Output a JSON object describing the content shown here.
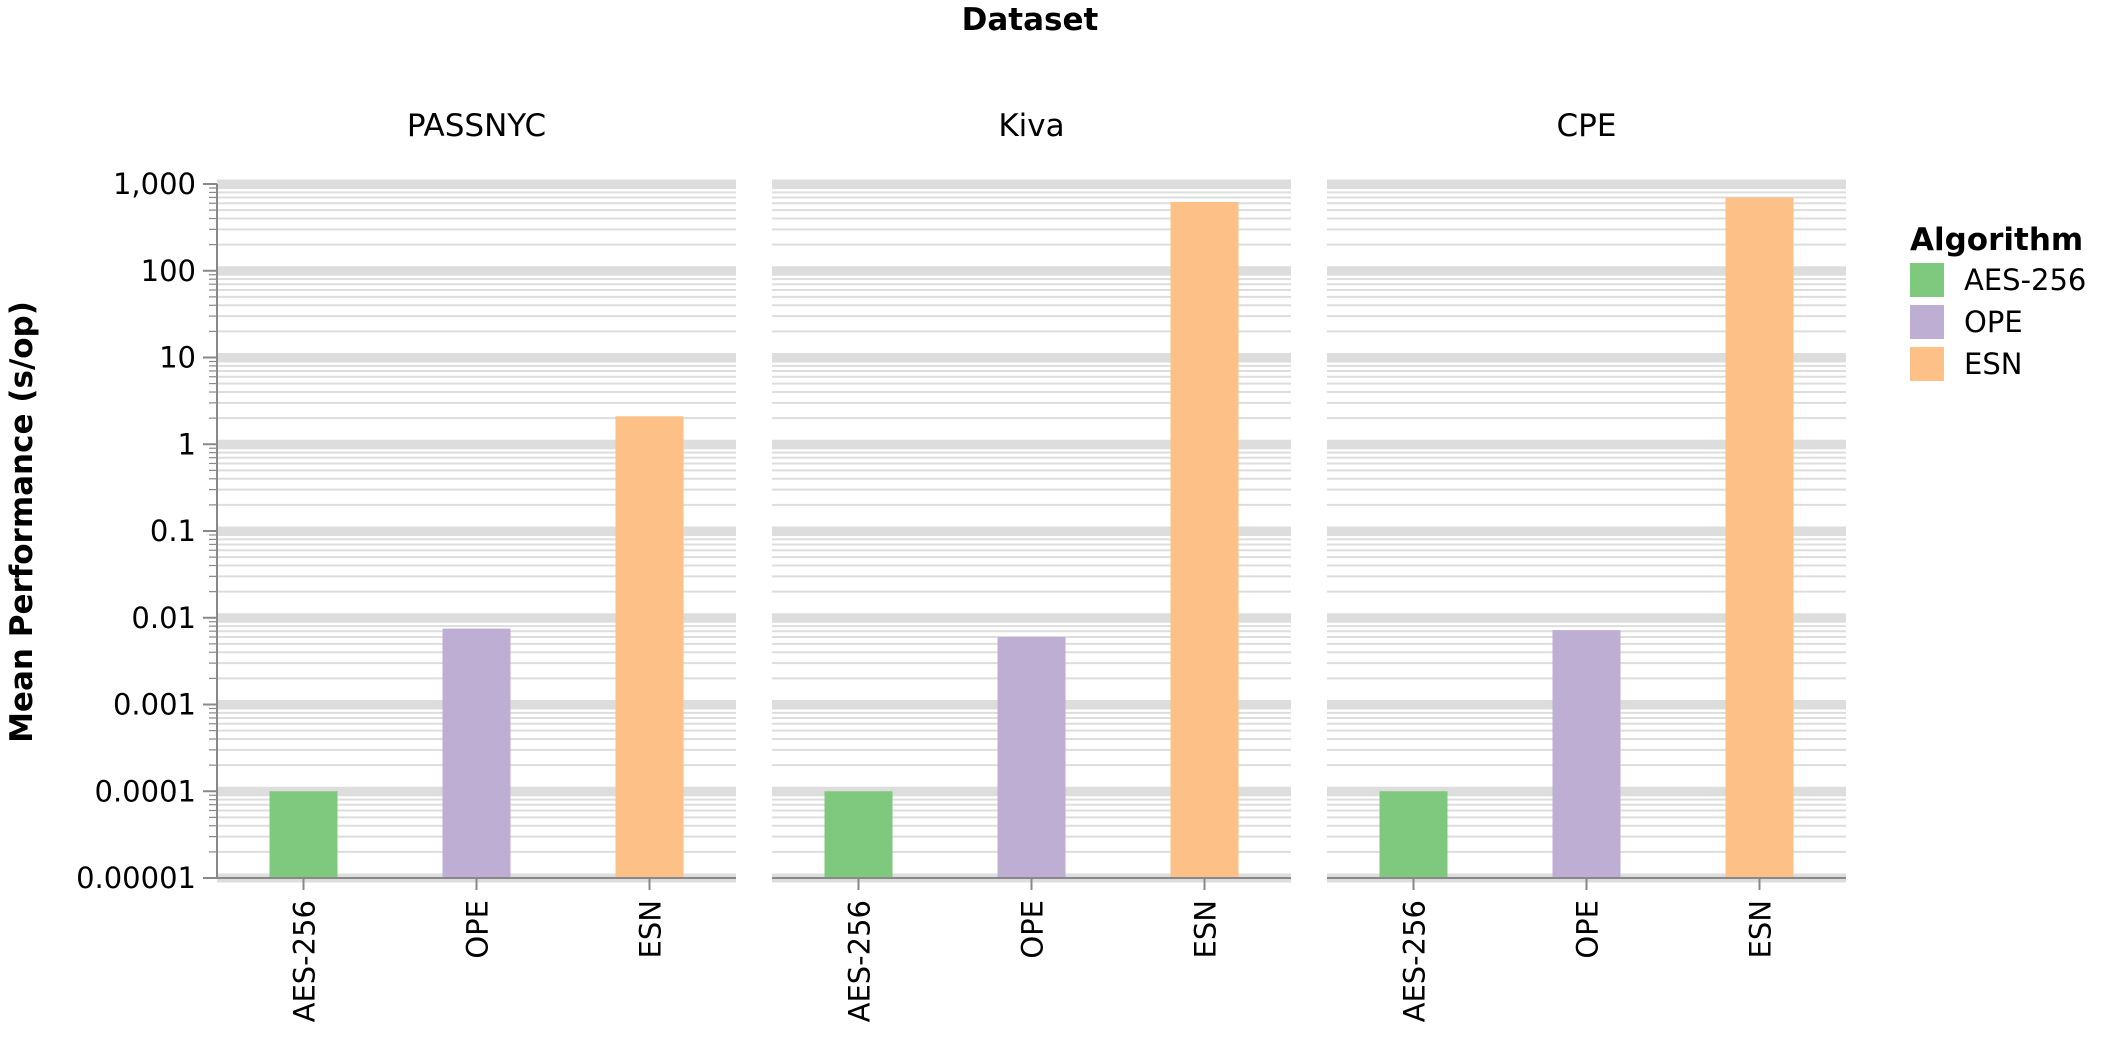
{
  "chart_data": {
    "type": "bar",
    "column_title": "Dataset",
    "ylabel": "Mean Performance (s/op)",
    "y_scale": "log",
    "ylim": [
      1e-05,
      1000
    ],
    "y_ticks": [
      "1,000",
      "100",
      "10",
      "1",
      "0.1",
      "0.01",
      "0.001",
      "0.0001",
      "0.00001"
    ],
    "y_tick_values": [
      1000,
      100,
      10,
      1,
      0.1,
      0.01,
      0.001,
      0.0001,
      1e-05
    ],
    "grid": true,
    "categories": [
      "AES-256",
      "OPE",
      "ESN"
    ],
    "facets": [
      {
        "name": "PASSNYC",
        "values": [
          0.0001,
          0.0075,
          2.1
        ]
      },
      {
        "name": "Kiva",
        "values": [
          0.0001,
          0.006,
          620
        ]
      },
      {
        "name": "CPE",
        "values": [
          0.0001,
          0.0072,
          700
        ]
      }
    ],
    "legend": {
      "title": "Algorithm",
      "position": "right",
      "items": [
        {
          "label": "AES-256",
          "color": "#7fc97f"
        },
        {
          "label": "OPE",
          "color": "#beaed4"
        },
        {
          "label": "ESN",
          "color": "#fdc086"
        }
      ]
    }
  }
}
